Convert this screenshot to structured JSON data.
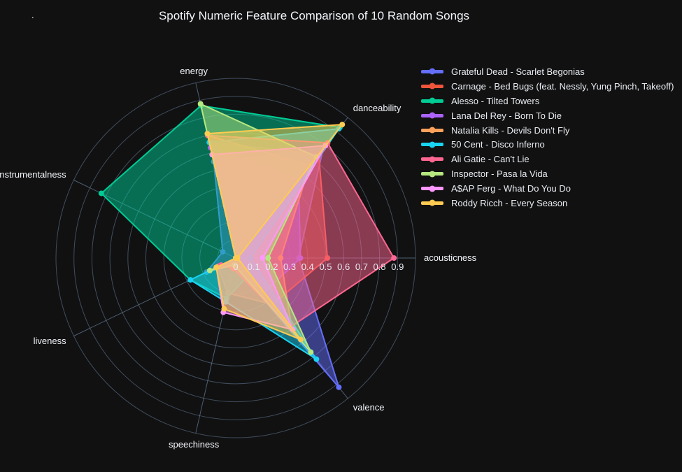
{
  "title": "Spotify Numeric Feature Comparison of 10 Random Songs",
  "annotation_dot": ".",
  "colors": {
    "background": "#111111",
    "grid": "#67809f",
    "axis_label": "#f2f5fa",
    "tick_label": "#e6eaf0",
    "title": "#f2f5fa"
  },
  "chart_data": {
    "type": "radar",
    "categories": [
      "acousticness",
      "danceability",
      "energy",
      "instrumentalness",
      "liveness",
      "speechiness",
      "valence"
    ],
    "radial_ticks": [
      0,
      0.1,
      0.2,
      0.3,
      0.4,
      0.5,
      0.6,
      0.7,
      0.8,
      0.9
    ],
    "radial_range": [
      0,
      1
    ],
    "grid": true,
    "legend_position": "right",
    "fill": "toself",
    "fill_opacity": 0.5,
    "series": [
      {
        "name": "Grateful Dead - Scarlet Begonias",
        "color": "#636EFA",
        "values": [
          0.35,
          0.78,
          0.55,
          0.08,
          0.18,
          0.04,
          0.92
        ]
      },
      {
        "name": "Carnage - Bed Bugs (feat. Nessly, Yung Pinch, Takeoff)",
        "color": "#EF553B",
        "values": [
          0.51,
          0.74,
          0.66,
          0.0,
          0.11,
          0.2,
          0.33
        ]
      },
      {
        "name": "Alesso - Tilted Towers",
        "color": "#00CC96",
        "values": [
          0.02,
          0.93,
          0.87,
          0.83,
          0.28,
          0.23,
          0.12
        ]
      },
      {
        "name": "Lana Del Rey - Born To Die",
        "color": "#AB63FA",
        "values": [
          0.36,
          0.56,
          0.63,
          0.0,
          0.1,
          0.03,
          0.25
        ]
      },
      {
        "name": "Natalia Kills - Devils Don't Fly",
        "color": "#FFA15A",
        "values": [
          0.25,
          0.66,
          0.7,
          0.0,
          0.11,
          0.04,
          0.5
        ]
      },
      {
        "name": "50 Cent - Disco Inferno",
        "color": "#19D3F3",
        "values": [
          0.08,
          0.92,
          0.66,
          0.0,
          0.28,
          0.25,
          0.72
        ]
      },
      {
        "name": "Ali Gatie - Can't Lie",
        "color": "#FF6692",
        "values": [
          0.88,
          0.82,
          0.7,
          0.0,
          0.09,
          0.06,
          0.49
        ]
      },
      {
        "name": "Inspector - Pasa la Vida",
        "color": "#B6E880",
        "values": [
          0.18,
          0.72,
          0.88,
          0.0,
          0.16,
          0.04,
          0.67
        ]
      },
      {
        "name": "A$AP Ferg - What Do You Do",
        "color": "#FF97FF",
        "values": [
          0.15,
          0.8,
          0.59,
          0.0,
          0.12,
          0.31,
          0.51
        ]
      },
      {
        "name": "Roddy Ricch - Every Season",
        "color": "#FECB52",
        "values": [
          0.01,
          0.95,
          0.71,
          0.0,
          0.12,
          0.29,
          0.58
        ]
      }
    ]
  }
}
